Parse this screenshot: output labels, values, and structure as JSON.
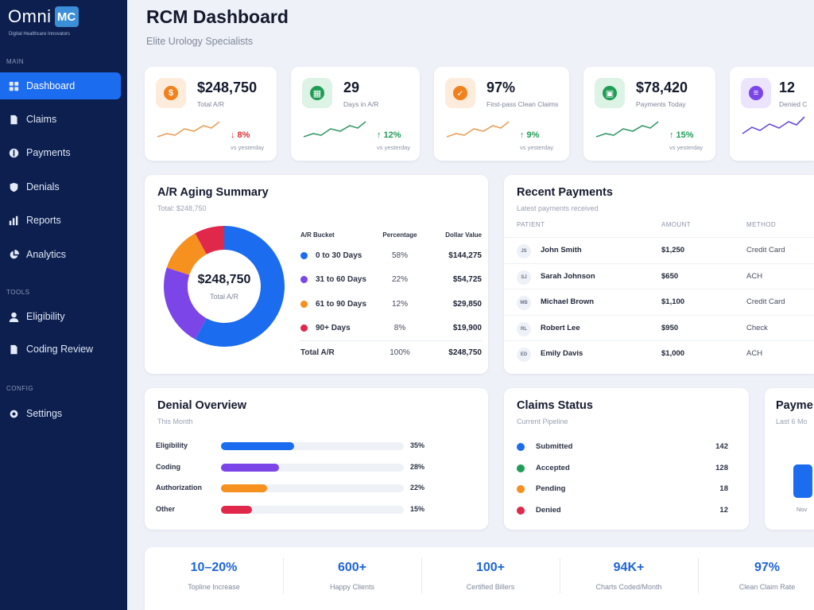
{
  "brand": {
    "name": "Omni",
    "mark": "MC",
    "tagline": "Digital Healthcare Innovators"
  },
  "sidebar": {
    "sections": {
      "main": "MAIN",
      "tools": "TOOLS",
      "config": "CONFIG"
    },
    "items": [
      {
        "label": "Dashboard",
        "icon": "grid-icon",
        "active": true
      },
      {
        "label": "Claims",
        "icon": "document-icon"
      },
      {
        "label": "Payments",
        "icon": "dollar-circle-icon"
      },
      {
        "label": "Denials",
        "icon": "shield-icon"
      },
      {
        "label": "Reports",
        "icon": "bar-chart-icon"
      },
      {
        "label": "Analytics",
        "icon": "pie-chart-icon"
      },
      {
        "label": "Eligibility",
        "icon": "user-icon"
      },
      {
        "label": "Coding Review",
        "icon": "document-icon"
      },
      {
        "label": "Settings",
        "icon": "gear-icon"
      }
    ]
  },
  "header": {
    "title": "RCM Dashboard",
    "subtitle": "Elite Urology Specialists"
  },
  "stats": [
    {
      "value": "$248,750",
      "label": "Total A/R",
      "change": "↓ 8%",
      "vs": "vs yesterday",
      "color": "#f0811c",
      "bg": "#fdecdc",
      "glyph": "$",
      "trend": "down"
    },
    {
      "value": "29",
      "label": "Days in A/R",
      "change": "↑ 12%",
      "vs": "vs yesterday",
      "color": "#1f9d55",
      "bg": "#ddf3e5",
      "glyph": "▦",
      "trend": "up"
    },
    {
      "value": "97%",
      "label": "First-pass Clean Claims",
      "change": "↑ 9%",
      "vs": "vs yesterday",
      "color": "#f0811c",
      "bg": "#fdecdc",
      "glyph": "✓",
      "trend": "up"
    },
    {
      "value": "$78,420",
      "label": "Payments Today",
      "change": "↑ 15%",
      "vs": "vs yesterday",
      "color": "#1f9d55",
      "bg": "#ddf3e5",
      "glyph": "▣",
      "trend": "up"
    },
    {
      "value": "12",
      "label": "Denied C",
      "color": "#7b45e8",
      "bg": "#ece4fd",
      "glyph": "≡",
      "trend": "up"
    }
  ],
  "aging": {
    "title": "A/R Aging Summary",
    "subtitle": "Total: $248,750",
    "center_value": "$248,750",
    "center_label": "Total A/R",
    "headers": [
      "A/R Bucket",
      "Percentage",
      "Dollar Value"
    ],
    "rows": [
      {
        "bucket": "0 to 30 Days",
        "pct": "58%",
        "value": "$144,275",
        "color": "#1c6cf0"
      },
      {
        "bucket": "31 to 60 Days",
        "pct": "22%",
        "value": "$54,725",
        "color": "#7b45e8"
      },
      {
        "bucket": "61 to 90 Days",
        "pct": "12%",
        "value": "$29,850",
        "color": "#f6901e"
      },
      {
        "bucket": "90+ Days",
        "pct": "8%",
        "value": "$19,900",
        "color": "#e0284a"
      }
    ],
    "total": {
      "bucket": "Total A/R",
      "pct": "100%",
      "value": "$248,750"
    }
  },
  "chart_data": {
    "type": "pie",
    "categories": [
      "0 to 30 Days",
      "31 to 60 Days",
      "61 to 90 Days",
      "90+ Days"
    ],
    "values": [
      58,
      22,
      12,
      8
    ],
    "colors": [
      "#1c6cf0",
      "#7b45e8",
      "#f6901e",
      "#e0284a"
    ],
    "title": "A/R Aging Summary"
  },
  "payments": {
    "title": "Recent Payments",
    "subtitle": "Latest payments received",
    "headers": [
      "PATIENT",
      "AMOUNT",
      "METHOD"
    ],
    "rows": [
      {
        "initials": "JS",
        "name": "John Smith",
        "amount": "$1,250",
        "method": "Credit Card"
      },
      {
        "initials": "SJ",
        "name": "Sarah Johnson",
        "amount": "$650",
        "method": "ACH"
      },
      {
        "initials": "MB",
        "name": "Michael Brown",
        "amount": "$1,100",
        "method": "Credit Card"
      },
      {
        "initials": "RL",
        "name": "Robert Lee",
        "amount": "$950",
        "method": "Check"
      },
      {
        "initials": "ED",
        "name": "Emily Davis",
        "amount": "$1,000",
        "method": "ACH"
      }
    ]
  },
  "denials": {
    "title": "Denial Overview",
    "subtitle": "This Month",
    "rows": [
      {
        "label": "Eligibility",
        "pct": "35%",
        "value": 35,
        "color": "#1c6cf0"
      },
      {
        "label": "Coding",
        "pct": "28%",
        "value": 28,
        "color": "#7b45e8"
      },
      {
        "label": "Authorization",
        "pct": "22%",
        "value": 22,
        "color": "#f6901e"
      },
      {
        "label": "Other",
        "pct": "15%",
        "value": 15,
        "color": "#e0284a"
      }
    ]
  },
  "claims": {
    "title": "Claims Status",
    "subtitle": "Current Pipeline",
    "rows": [
      {
        "label": "Submitted",
        "count": "142",
        "color": "#1c6cf0"
      },
      {
        "label": "Accepted",
        "count": "128",
        "color": "#1f9d55"
      },
      {
        "label": "Pending",
        "count": "18",
        "color": "#f6901e"
      },
      {
        "label": "Denied",
        "count": "12",
        "color": "#e0284a"
      }
    ]
  },
  "payments_trend": {
    "title": "Payme",
    "subtitle": "Last 6 Mo",
    "month": "Nov"
  },
  "kpis": [
    {
      "value": "10–20%",
      "label": "Topline Increase"
    },
    {
      "value": "600+",
      "label": "Happy Clients"
    },
    {
      "value": "100+",
      "label": "Certified Billers"
    },
    {
      "value": "94K+",
      "label": "Charts Coded/Month"
    },
    {
      "value": "97%",
      "label": "Clean Claim Rate"
    }
  ]
}
